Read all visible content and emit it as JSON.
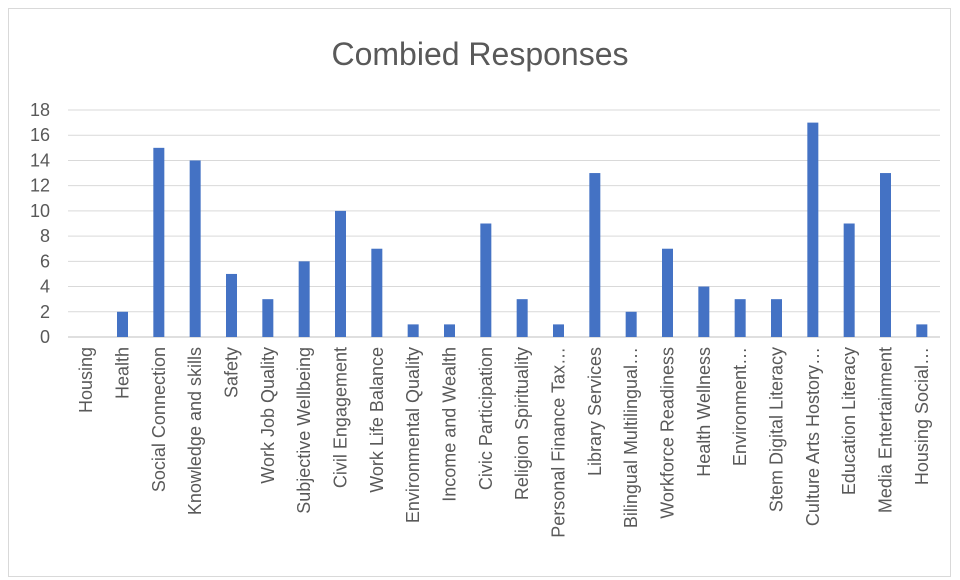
{
  "chart_data": {
    "type": "bar",
    "title": "Combied Responses",
    "xlabel": "",
    "ylabel": "",
    "ylim": [
      0,
      18
    ],
    "yticks": [
      0,
      2,
      4,
      6,
      8,
      10,
      12,
      14,
      16,
      18
    ],
    "grid": true,
    "legend": "none",
    "bar_color": "#4472c4",
    "categories": [
      "Housing",
      "Health",
      "Social Connection",
      "Knowledge and skills",
      "Safety",
      "Work Job Quality",
      "Subjective Wellbeing",
      "Civil Engagement",
      "Work Life Balance",
      "Environmental Quality",
      "Income and Wealth",
      "Civic Participation",
      "Religion Spirituality",
      "Personal Finance Tax…",
      "Library Services",
      "Bilingual Multilingual…",
      "Workforce Readiness",
      "Health Wellness",
      "Environment…",
      "Stem Digital Literacy",
      "Culture Arts Hostory…",
      "Education Literacy",
      "Media Entertainment",
      "Housing Social…"
    ],
    "values": [
      0,
      2,
      15,
      14,
      5,
      3,
      6,
      10,
      7,
      1,
      1,
      9,
      3,
      1,
      13,
      2,
      7,
      4,
      3,
      3,
      17,
      9,
      13,
      1
    ]
  }
}
